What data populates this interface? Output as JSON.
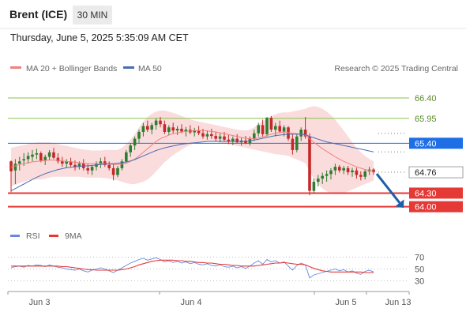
{
  "header": {
    "instrument": "Brent (ICE)",
    "timeframe": "30 MIN",
    "datetime": "Thursday, June 5, 2025 5:35:09 AM CET"
  },
  "legend": {
    "ma20": "MA 20 + Bollinger Bands",
    "ma50": "MA 50",
    "copyright": "Research © 2025 Trading Central"
  },
  "rsi_legend": {
    "rsi": "RSI",
    "ma9": "9MA"
  },
  "colors": {
    "up": "#2e7d32",
    "down": "#c62828",
    "bollinger": "#f8d0d0",
    "ma20": "#f08080",
    "ma50": "#4a6cb3",
    "target": "#8bc34a",
    "pivot": "#1e6ee6",
    "support": "#e53935",
    "price_tag": "#ffffff",
    "arrow": "#1e5fa8",
    "rsi": "#6688dd",
    "rsi_ma": "#e53935"
  },
  "levels": [
    {
      "value": 66.4,
      "label": "66.40",
      "kind": "target"
    },
    {
      "value": 65.95,
      "label": "65.95",
      "kind": "target"
    },
    {
      "value": 65.4,
      "label": "65.40",
      "kind": "pivot"
    },
    {
      "value": 64.76,
      "label": "64.76",
      "kind": "last"
    },
    {
      "value": 64.3,
      "label": "64.30",
      "kind": "support"
    },
    {
      "value": 64.0,
      "label": "64.00",
      "kind": "support"
    }
  ],
  "chart_data": [
    {
      "type": "candlestick",
      "x_ticks": [
        "Jun 3",
        "Jun 4",
        "Jun 5",
        "Jun 13"
      ],
      "ylim": [
        63.75,
        66.8
      ],
      "ohlc": [
        [
          65.0,
          65.02,
          64.32,
          64.78
        ],
        [
          64.8,
          65.05,
          64.5,
          64.95
        ],
        [
          64.95,
          65.1,
          64.8,
          65.0
        ],
        [
          65.02,
          65.18,
          64.9,
          65.05
        ],
        [
          65.05,
          65.2,
          64.95,
          65.12
        ],
        [
          65.1,
          65.25,
          65.0,
          65.15
        ],
        [
          65.15,
          65.28,
          65.05,
          65.18
        ],
        [
          65.18,
          65.22,
          64.98,
          65.02
        ],
        [
          65.02,
          65.15,
          64.92,
          65.1
        ],
        [
          65.1,
          65.25,
          65.02,
          65.2
        ],
        [
          65.2,
          65.3,
          65.05,
          65.08
        ],
        [
          65.08,
          65.18,
          64.95,
          65.0
        ],
        [
          65.0,
          65.1,
          64.88,
          64.95
        ],
        [
          64.95,
          65.05,
          64.85,
          65.0
        ],
        [
          65.0,
          65.08,
          64.88,
          64.92
        ],
        [
          64.92,
          65.02,
          64.8,
          64.88
        ],
        [
          64.88,
          65.0,
          64.82,
          64.95
        ],
        [
          64.95,
          65.05,
          64.8,
          64.85
        ],
        [
          64.85,
          64.95,
          64.72,
          64.8
        ],
        [
          64.8,
          64.92,
          64.7,
          64.88
        ],
        [
          64.88,
          65.0,
          64.8,
          64.95
        ],
        [
          64.95,
          65.08,
          64.85,
          65.0
        ],
        [
          65.0,
          65.1,
          64.88,
          64.92
        ],
        [
          64.92,
          65.0,
          64.8,
          64.85
        ],
        [
          64.85,
          64.95,
          64.58,
          64.7
        ],
        [
          64.7,
          64.9,
          64.65,
          64.85
        ],
        [
          64.85,
          65.05,
          64.8,
          65.0
        ],
        [
          65.0,
          65.25,
          64.95,
          65.2
        ],
        [
          65.2,
          65.4,
          65.1,
          65.35
        ],
        [
          65.35,
          65.55,
          65.25,
          65.5
        ],
        [
          65.5,
          65.7,
          65.4,
          65.65
        ],
        [
          65.65,
          65.85,
          65.55,
          65.78
        ],
        [
          65.78,
          65.9,
          65.65,
          65.7
        ],
        [
          65.7,
          65.85,
          65.6,
          65.8
        ],
        [
          65.8,
          65.95,
          65.7,
          65.9
        ],
        [
          65.9,
          65.98,
          65.75,
          65.82
        ],
        [
          65.82,
          65.9,
          65.6,
          65.65
        ],
        [
          65.65,
          65.8,
          65.58,
          65.75
        ],
        [
          65.75,
          65.85,
          65.62,
          65.68
        ],
        [
          65.68,
          65.78,
          65.58,
          65.72
        ],
        [
          65.72,
          65.82,
          65.62,
          65.66
        ],
        [
          65.66,
          65.76,
          65.55,
          65.7
        ],
        [
          65.7,
          65.8,
          65.6,
          65.64
        ],
        [
          65.64,
          65.74,
          65.55,
          65.68
        ],
        [
          65.68,
          65.78,
          65.58,
          65.62
        ],
        [
          65.62,
          65.72,
          65.5,
          65.55
        ],
        [
          65.55,
          65.68,
          65.48,
          65.6
        ],
        [
          65.6,
          65.72,
          65.5,
          65.56
        ],
        [
          65.56,
          65.66,
          65.45,
          65.5
        ],
        [
          65.5,
          65.62,
          65.42,
          65.55
        ],
        [
          65.55,
          65.65,
          65.45,
          65.48
        ],
        [
          65.48,
          65.58,
          65.38,
          65.44
        ],
        [
          65.44,
          65.55,
          65.36,
          65.5
        ],
        [
          65.5,
          65.6,
          65.4,
          65.42
        ],
        [
          65.42,
          65.52,
          65.35,
          65.46
        ],
        [
          65.46,
          65.56,
          65.38,
          65.4
        ],
        [
          65.4,
          65.55,
          65.35,
          65.5
        ],
        [
          65.5,
          65.7,
          65.45,
          65.62
        ],
        [
          65.62,
          65.85,
          65.55,
          65.8
        ],
        [
          65.8,
          65.92,
          65.55,
          65.6
        ],
        [
          65.6,
          65.98,
          65.55,
          65.96
        ],
        [
          65.96,
          66.0,
          65.65,
          65.7
        ],
        [
          65.7,
          65.85,
          65.55,
          65.78
        ],
        [
          65.78,
          65.9,
          65.62,
          65.66
        ],
        [
          65.66,
          65.8,
          65.55,
          65.75
        ],
        [
          65.75,
          65.78,
          65.45,
          65.5
        ],
        [
          65.5,
          65.6,
          65.15,
          65.25
        ],
        [
          65.25,
          65.6,
          65.2,
          65.55
        ],
        [
          65.55,
          65.75,
          65.45,
          65.7
        ],
        [
          65.7,
          65.98,
          65.5,
          65.55
        ],
        [
          65.55,
          65.62,
          64.25,
          64.35
        ],
        [
          64.35,
          64.62,
          64.3,
          64.55
        ],
        [
          64.55,
          64.7,
          64.45,
          64.62
        ],
        [
          64.62,
          64.75,
          64.5,
          64.68
        ],
        [
          64.68,
          64.8,
          64.55,
          64.72
        ],
        [
          64.72,
          64.85,
          64.6,
          64.8
        ],
        [
          64.8,
          64.95,
          64.7,
          64.88
        ],
        [
          64.88,
          64.92,
          64.75,
          64.8
        ],
        [
          64.8,
          64.9,
          64.72,
          64.85
        ],
        [
          64.85,
          64.9,
          64.7,
          64.76
        ],
        [
          64.76,
          64.86,
          64.66,
          64.8
        ],
        [
          64.8,
          64.86,
          64.62,
          64.7
        ],
        [
          64.7,
          64.78,
          64.58,
          64.66
        ],
        [
          64.66,
          64.82,
          64.6,
          64.78
        ],
        [
          64.78,
          64.88,
          64.7,
          64.82
        ],
        [
          64.82,
          64.85,
          64.7,
          64.76
        ]
      ],
      "ma20": [
        64.88,
        64.9,
        64.93,
        64.95,
        64.97,
        64.99,
        65.0,
        65.01,
        65.02,
        65.03,
        65.03,
        65.02,
        65.01,
        65.0,
        64.99,
        64.98,
        64.97,
        64.96,
        64.95,
        64.95,
        64.95,
        64.95,
        64.95,
        64.94,
        64.93,
        64.93,
        64.94,
        64.96,
        65.0,
        65.05,
        65.12,
        65.2,
        65.28,
        65.36,
        65.44,
        65.5,
        65.54,
        65.58,
        65.61,
        65.63,
        65.65,
        65.66,
        65.67,
        65.68,
        65.68,
        65.68,
        65.67,
        65.66,
        65.65,
        65.63,
        65.61,
        65.59,
        65.57,
        65.55,
        65.53,
        65.51,
        65.5,
        65.5,
        65.52,
        65.54,
        65.57,
        65.6,
        65.62,
        65.64,
        65.65,
        65.64,
        65.62,
        65.61,
        65.6,
        65.58,
        65.5,
        65.42,
        65.35,
        65.28,
        65.22,
        65.16,
        65.1,
        65.05,
        65.0,
        64.96,
        64.92,
        64.88,
        64.85,
        64.82,
        64.8,
        64.78
      ],
      "bb_upper": [
        65.3,
        65.32,
        65.34,
        65.36,
        65.38,
        65.4,
        65.42,
        65.42,
        65.42,
        65.42,
        65.4,
        65.38,
        65.36,
        65.34,
        65.32,
        65.3,
        65.28,
        65.26,
        65.25,
        65.24,
        65.24,
        65.24,
        65.25,
        65.25,
        65.25,
        65.25,
        65.3,
        65.38,
        65.48,
        65.6,
        65.75,
        65.88,
        65.98,
        66.05,
        66.1,
        66.12,
        66.12,
        66.1,
        66.07,
        66.04,
        66.0,
        65.96,
        65.93,
        65.9,
        65.88,
        65.86,
        65.84,
        65.82,
        65.8,
        65.78,
        65.76,
        65.74,
        65.72,
        65.7,
        65.69,
        65.68,
        65.7,
        65.75,
        65.82,
        65.88,
        65.94,
        66.0,
        66.04,
        66.07,
        66.08,
        66.08,
        66.1,
        66.12,
        66.14,
        66.16,
        66.2,
        66.22,
        66.2,
        66.16,
        66.1,
        66.02,
        65.92,
        65.8,
        65.68,
        65.55,
        65.42,
        65.3,
        65.2,
        65.12,
        65.05,
        65.0
      ],
      "bb_lower": [
        64.45,
        64.48,
        64.52,
        64.55,
        64.58,
        64.6,
        64.6,
        64.6,
        64.62,
        64.64,
        64.66,
        64.66,
        64.66,
        64.66,
        64.66,
        64.66,
        64.66,
        64.65,
        64.64,
        64.64,
        64.64,
        64.64,
        64.63,
        64.62,
        64.6,
        64.58,
        64.55,
        64.52,
        64.5,
        64.5,
        64.52,
        64.55,
        64.6,
        64.68,
        64.78,
        64.88,
        64.98,
        65.06,
        65.14,
        65.2,
        65.26,
        65.32,
        65.36,
        65.4,
        65.42,
        65.44,
        65.44,
        65.44,
        65.44,
        65.42,
        65.4,
        65.38,
        65.36,
        65.34,
        65.32,
        65.3,
        65.28,
        65.26,
        65.24,
        65.22,
        65.2,
        65.18,
        65.16,
        65.15,
        65.14,
        65.12,
        65.08,
        65.04,
        65.0,
        64.96,
        64.78,
        64.62,
        64.5,
        64.4,
        64.34,
        64.3,
        64.28,
        64.28,
        64.3,
        64.34,
        64.38,
        64.42,
        64.46,
        64.5,
        64.54,
        64.58
      ],
      "ma50": [
        64.35,
        64.4,
        64.45,
        64.5,
        64.55,
        64.6,
        64.65,
        64.69,
        64.73,
        64.76,
        64.79,
        64.82,
        64.84,
        64.86,
        64.87,
        64.88,
        64.89,
        64.9,
        64.9,
        64.91,
        64.92,
        64.93,
        64.94,
        64.95,
        64.95,
        64.96,
        64.97,
        64.99,
        65.01,
        65.04,
        65.08,
        65.12,
        65.16,
        65.2,
        65.24,
        65.27,
        65.3,
        65.32,
        65.34,
        65.36,
        65.38,
        65.39,
        65.4,
        65.41,
        65.42,
        65.43,
        65.44,
        65.44,
        65.44,
        65.44,
        65.44,
        65.44,
        65.44,
        65.44,
        65.44,
        65.44,
        65.45,
        65.47,
        65.49,
        65.51,
        65.53,
        65.55,
        65.57,
        65.58,
        65.59,
        65.6,
        65.6,
        65.6,
        65.6,
        65.59,
        65.55,
        65.52,
        65.49,
        65.46,
        65.43,
        65.41,
        65.39,
        65.37,
        65.35,
        65.33,
        65.31,
        65.29,
        65.27,
        65.25,
        65.23,
        65.21
      ]
    },
    {
      "type": "line",
      "ylim": [
        20,
        80
      ],
      "y_ticks": [
        70,
        50,
        30
      ],
      "series": [
        {
          "name": "RSI",
          "values": [
            52,
            54,
            55,
            53,
            56,
            55,
            57,
            56,
            54,
            57,
            55,
            53,
            52,
            50,
            49,
            48,
            50,
            47,
            45,
            48,
            50,
            52,
            50,
            47,
            44,
            48,
            52,
            56,
            60,
            63,
            66,
            68,
            65,
            67,
            69,
            66,
            62,
            64,
            61,
            63,
            60,
            62,
            59,
            61,
            58,
            57,
            59,
            56,
            55,
            57,
            54,
            53,
            55,
            52,
            54,
            51,
            55,
            60,
            64,
            58,
            66,
            62,
            64,
            60,
            62,
            55,
            48,
            56,
            60,
            57,
            35,
            40,
            42,
            44,
            46,
            48,
            50,
            47,
            49,
            45,
            47,
            43,
            41,
            46,
            48,
            45
          ]
        },
        {
          "name": "9MA",
          "values": [
            55,
            55,
            55,
            55,
            55,
            55,
            55,
            55,
            55,
            55,
            55,
            55,
            54,
            54,
            53,
            52,
            51,
            50,
            49,
            49,
            48,
            48,
            48,
            48,
            48,
            48,
            49,
            50,
            52,
            54,
            57,
            59,
            61,
            63,
            64,
            65,
            65,
            65,
            65,
            64,
            64,
            63,
            63,
            62,
            61,
            61,
            60,
            60,
            59,
            58,
            58,
            57,
            56,
            56,
            55,
            55,
            55,
            55,
            56,
            57,
            58,
            59,
            60,
            60,
            61,
            60,
            59,
            58,
            58,
            57,
            54,
            51,
            49,
            47,
            46,
            45,
            45,
            45,
            45,
            45,
            45,
            45,
            45,
            44,
            44,
            44
          ]
        }
      ]
    }
  ]
}
